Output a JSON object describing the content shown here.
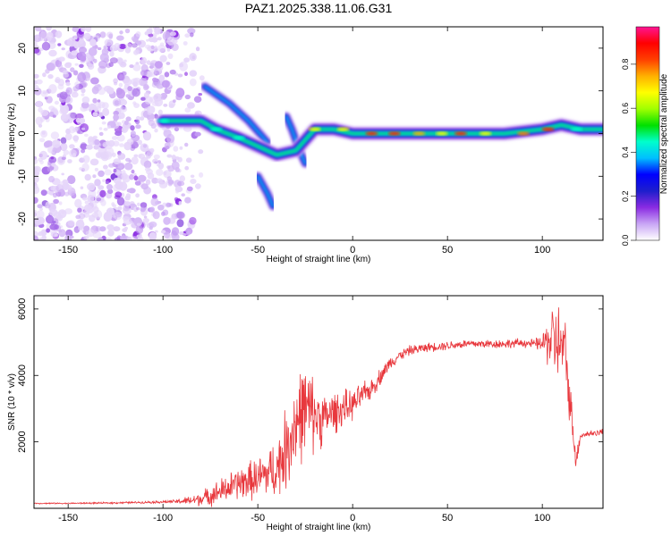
{
  "chart_data": [
    {
      "type": "heatmap",
      "title": "PAZ1.2025.338.11.06.G31",
      "xlabel": "Height of straight line (km)",
      "ylabel": "Frequency (Hz)",
      "xlim": [
        -168,
        132
      ],
      "ylim": [
        -25,
        25
      ],
      "xticks": [
        -150,
        -100,
        -50,
        0,
        50,
        100
      ],
      "yticks": [
        -20,
        -10,
        0,
        10,
        20
      ],
      "colorbar": {
        "label": "Normalized spectral amplitude",
        "range": [
          0,
          1
        ],
        "ticks": [
          "0.0",
          "0.2",
          "0.4",
          "0.6",
          "0.8"
        ],
        "colors": [
          "#ffffff",
          "#c9a6f5",
          "#8a2be2",
          "#1e1ecc",
          "#0000ff",
          "#00bfff",
          "#00ffcc",
          "#00e000",
          "#a0ff00",
          "#ffff00",
          "#ffb000",
          "#ff4000",
          "#ff0000",
          "#ff1493"
        ]
      },
      "ridge": [
        {
          "x": -100,
          "f": 3
        },
        {
          "x": -80,
          "f": 3
        },
        {
          "x": -72,
          "f": 1
        },
        {
          "x": -60,
          "f": -1
        },
        {
          "x": -50,
          "f": -3
        },
        {
          "x": -40,
          "f": -5
        },
        {
          "x": -30,
          "f": -4
        },
        {
          "x": -20,
          "f": 1
        },
        {
          "x": -10,
          "f": 1
        },
        {
          "x": 0,
          "f": 0
        },
        {
          "x": 20,
          "f": 0
        },
        {
          "x": 40,
          "f": 0
        },
        {
          "x": 60,
          "f": 0
        },
        {
          "x": 80,
          "f": 0
        },
        {
          "x": 100,
          "f": 1
        },
        {
          "x": 110,
          "f": 2
        },
        {
          "x": 120,
          "f": 1
        },
        {
          "x": 132,
          "f": 1
        }
      ],
      "branches": [
        [
          {
            "x": -78,
            "f": 11
          },
          {
            "x": -65,
            "f": 7
          },
          {
            "x": -55,
            "f": 3
          },
          {
            "x": -45,
            "f": -2
          }
        ],
        [
          {
            "x": -50,
            "f": -10
          },
          {
            "x": -45,
            "f": -14
          },
          {
            "x": -42,
            "f": -17
          }
        ],
        [
          {
            "x": -35,
            "f": 4
          },
          {
            "x": -32,
            "f": 1
          },
          {
            "x": -28,
            "f": -4
          },
          {
            "x": -25,
            "f": -7
          }
        ]
      ]
    },
    {
      "type": "line",
      "xlabel": "Height of straight line (km)",
      "ylabel": "SNR (10 * v/v)",
      "xlim": [
        -168,
        132
      ],
      "ylim": [
        0,
        6400
      ],
      "xticks": [
        -150,
        -100,
        -50,
        0,
        50,
        100
      ],
      "yticks": [
        2000,
        4000,
        6000
      ],
      "series": [
        {
          "name": "SNR",
          "color": "#e8383d",
          "x": [
            -168,
            -150,
            -130,
            -110,
            -95,
            -85,
            -78,
            -70,
            -60,
            -50,
            -40,
            -35,
            -30,
            -25,
            -20,
            -15,
            -10,
            -5,
            0,
            5,
            10,
            15,
            20,
            25,
            30,
            40,
            50,
            60,
            70,
            80,
            90,
            95,
            100,
            104,
            108,
            112,
            115,
            118,
            120,
            125,
            132
          ],
          "y": [
            150,
            150,
            160,
            180,
            200,
            230,
            320,
            500,
            750,
            900,
            1200,
            1800,
            2600,
            3000,
            2800,
            2700,
            2900,
            3000,
            3100,
            3400,
            3600,
            4000,
            4400,
            4600,
            4750,
            4850,
            4900,
            4950,
            4950,
            4950,
            4980,
            4950,
            4950,
            5100,
            5000,
            4700,
            3000,
            1400,
            2200,
            2250,
            2300
          ],
          "noise": [
            15,
            15,
            20,
            25,
            40,
            120,
            200,
            300,
            400,
            500,
            700,
            1000,
            1200,
            1100,
            900,
            600,
            500,
            450,
            350,
            300,
            250,
            200,
            150,
            130,
            120,
            110,
            110,
            110,
            110,
            110,
            110,
            110,
            200,
            800,
            1000,
            800,
            500,
            300,
            100,
            80,
            80
          ]
        }
      ]
    }
  ]
}
